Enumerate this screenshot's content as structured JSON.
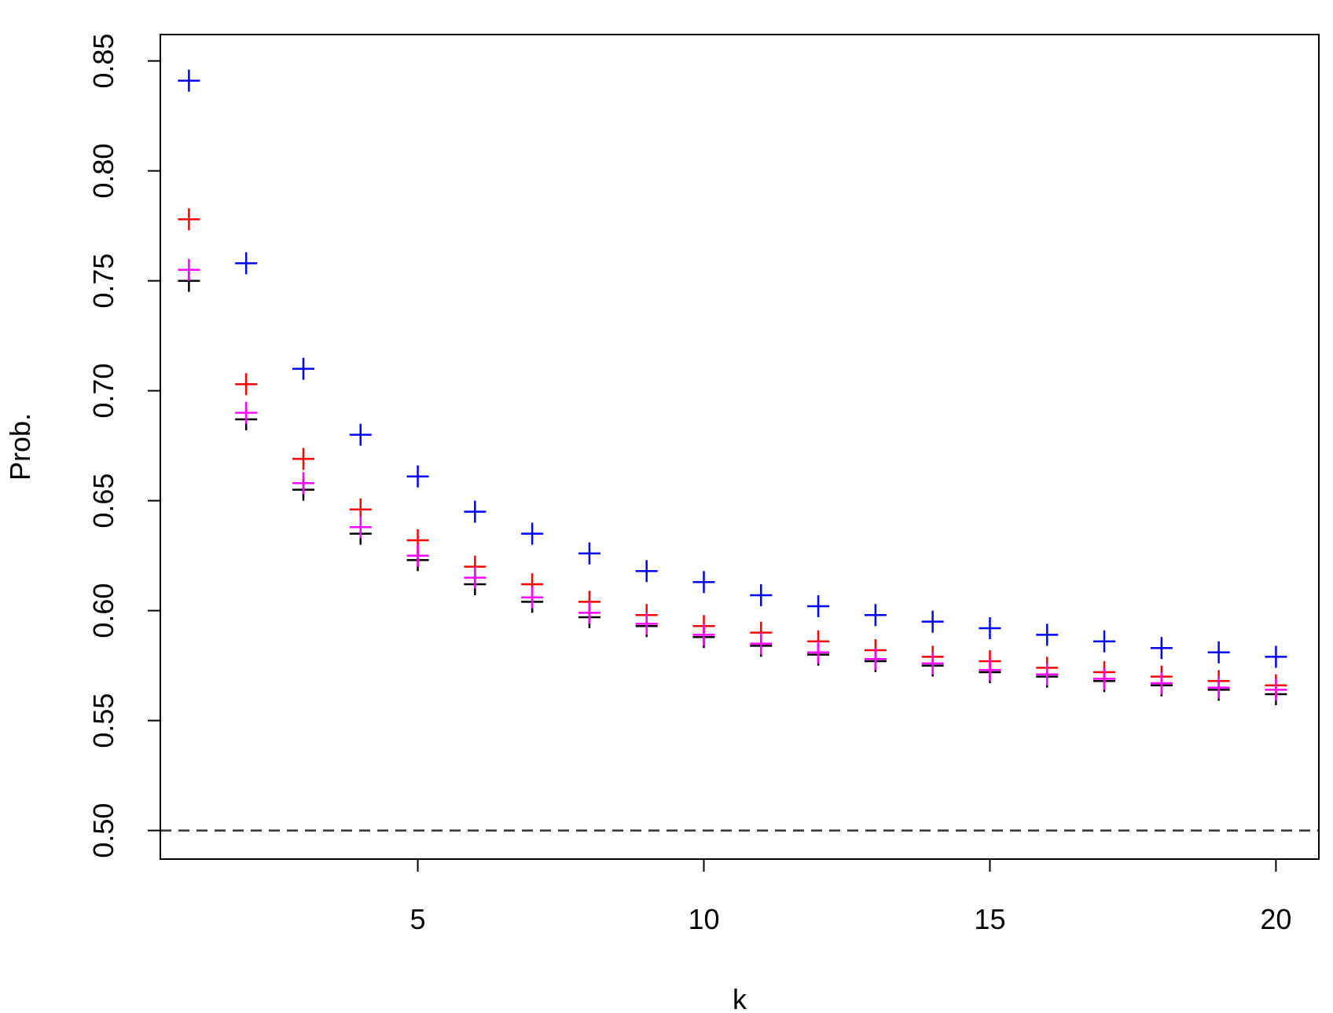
{
  "chart_data": {
    "type": "scatter",
    "title": "",
    "xlabel": "k",
    "ylabel": "Prob.",
    "xlim": [
      0.5,
      20.75
    ],
    "ylim": [
      0.487,
      0.862
    ],
    "x_ticks": [
      5,
      10,
      15,
      20
    ],
    "x_tick_labels": [
      "5",
      "10",
      "15",
      "20"
    ],
    "y_ticks": [
      0.5,
      0.55,
      0.6,
      0.65,
      0.7,
      0.75,
      0.8,
      0.85
    ],
    "y_tick_labels": [
      "0.50",
      "0.55",
      "0.60",
      "0.65",
      "0.70",
      "0.75",
      "0.80",
      "0.85"
    ],
    "marker": "+",
    "grid": false,
    "legend": "none",
    "reference_line": {
      "y": 0.5,
      "style": "dashed",
      "color": "#333333"
    },
    "x": [
      1,
      2,
      3,
      4,
      5,
      6,
      7,
      8,
      9,
      10,
      11,
      12,
      13,
      14,
      15,
      16,
      17,
      18,
      19,
      20
    ],
    "series": [
      {
        "color": "#000000",
        "values": [
          0.75,
          0.687,
          0.655,
          0.635,
          0.623,
          0.612,
          0.604,
          0.597,
          0.593,
          0.588,
          0.584,
          0.58,
          0.577,
          0.575,
          0.572,
          0.57,
          0.568,
          0.566,
          0.564,
          0.562
        ]
      },
      {
        "color": "#ff0000",
        "values": [
          0.778,
          0.703,
          0.669,
          0.646,
          0.632,
          0.62,
          0.612,
          0.604,
          0.598,
          0.593,
          0.59,
          0.586,
          0.582,
          0.579,
          0.577,
          0.574,
          0.572,
          0.57,
          0.568,
          0.566
        ]
      },
      {
        "color": "#ff00ff",
        "values": [
          0.755,
          0.69,
          0.658,
          0.638,
          0.625,
          0.615,
          0.606,
          0.599,
          0.594,
          0.589,
          0.585,
          0.581,
          0.578,
          0.576,
          0.573,
          0.571,
          0.569,
          0.567,
          0.565,
          0.564
        ]
      },
      {
        "color": "#0000ff",
        "values": [
          0.841,
          0.758,
          0.71,
          0.68,
          0.661,
          0.645,
          0.635,
          0.626,
          0.618,
          0.613,
          0.607,
          0.602,
          0.598,
          0.595,
          0.592,
          0.589,
          0.586,
          0.583,
          0.581,
          0.579
        ]
      }
    ]
  }
}
